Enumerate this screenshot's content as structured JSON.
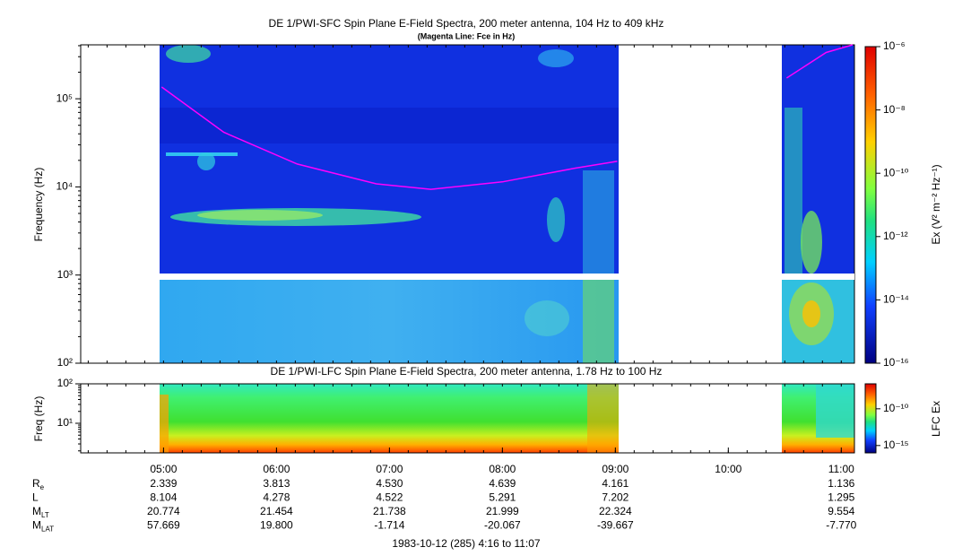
{
  "chart_data": [
    {
      "type": "spectrogram",
      "title": "DE 1/PWI-SFC  Spin Plane E-Field Spectra, 200 meter antenna, 104 Hz to 409 kHz",
      "subtitle": "(Magenta Line: Fce in Hz)",
      "ylabel": "Frequency (Hz)",
      "log_y": true,
      "xlim": [
        "04:16",
        "11:07"
      ],
      "ylim": [
        100,
        409000
      ],
      "yticks": [
        {
          "value": 100,
          "label": "10²"
        },
        {
          "value": 1000,
          "label": "10³"
        },
        {
          "value": 10000,
          "label": "10⁴"
        },
        {
          "value": 100000,
          "label": "10⁵"
        }
      ],
      "colorbar": {
        "label": "Ex (V² m⁻² Hz⁻¹)",
        "lim": [
          1e-16,
          1e-06
        ],
        "ticks": [
          {
            "value": 1e-06,
            "label": "10⁻⁶"
          },
          {
            "value": 1e-08,
            "label": "10⁻⁸"
          },
          {
            "value": 1e-10,
            "label": "10⁻¹⁰"
          },
          {
            "value": 1e-12,
            "label": "10⁻¹²"
          },
          {
            "value": 1e-14,
            "label": "10⁻¹⁴"
          },
          {
            "value": 1e-16,
            "label": "10⁻¹⁶"
          }
        ]
      },
      "series": [
        {
          "color": "#ff00ff",
          "x": [
            "04:59",
            "05:32",
            "06:11",
            "06:53",
            "07:22",
            "08:00",
            "08:38",
            "09:01",
            "09:45",
            "10:31",
            "10:52",
            "11:06"
          ],
          "values": [
            136000,
            41700,
            18200,
            10840,
            9400,
            11400,
            16200,
            19500,
            null,
            172000,
            335000,
            409000
          ]
        }
      ]
    },
    {
      "type": "spectrogram",
      "title": "DE 1/PWI-LFC  Spin Plane E-Field Spectra, 200 meter antenna, 1.78 Hz to 100 Hz",
      "ylabel": "Freq (Hz)",
      "log_y": true,
      "xlim": [
        "04:16",
        "11:07"
      ],
      "xticks": [
        "05:00",
        "06:00",
        "07:00",
        "08:00",
        "09:00",
        "10:00",
        "11:00"
      ],
      "ylim": [
        1.78,
        100
      ],
      "yticks": [
        {
          "value": 10,
          "label": "10¹"
        },
        {
          "value": 100,
          "label": "10²"
        }
      ],
      "colorbar": {
        "label": "LFC Ex",
        "lim": [
          1e-16,
          2.5e-07
        ],
        "ticks": [
          {
            "value": 1e-10,
            "label": "10⁻¹⁰"
          },
          {
            "value": 1e-15,
            "label": "10⁻¹⁵"
          }
        ]
      }
    }
  ],
  "ephemeris": [
    {
      "label": "R",
      "sub": "e",
      "values": [
        "2.339",
        "3.813",
        "4.530",
        "4.639",
        "4.161",
        null,
        "1.136"
      ]
    },
    {
      "label": "L",
      "values": [
        "8.104",
        "4.278",
        "4.522",
        "5.291",
        "7.202",
        null,
        "1.295"
      ]
    },
    {
      "label": "M",
      "sub": "LT",
      "values": [
        "20.774",
        "21.454",
        "21.738",
        "21.999",
        "22.324",
        null,
        "9.554"
      ]
    },
    {
      "label": "M",
      "sub": "LAT",
      "values": [
        "57.669",
        "19.800",
        "-1.714",
        "-20.067",
        "-39.667",
        null,
        "-7.770"
      ]
    }
  ],
  "footer": "1983-10-12 (285) 4:16 to 11:07"
}
